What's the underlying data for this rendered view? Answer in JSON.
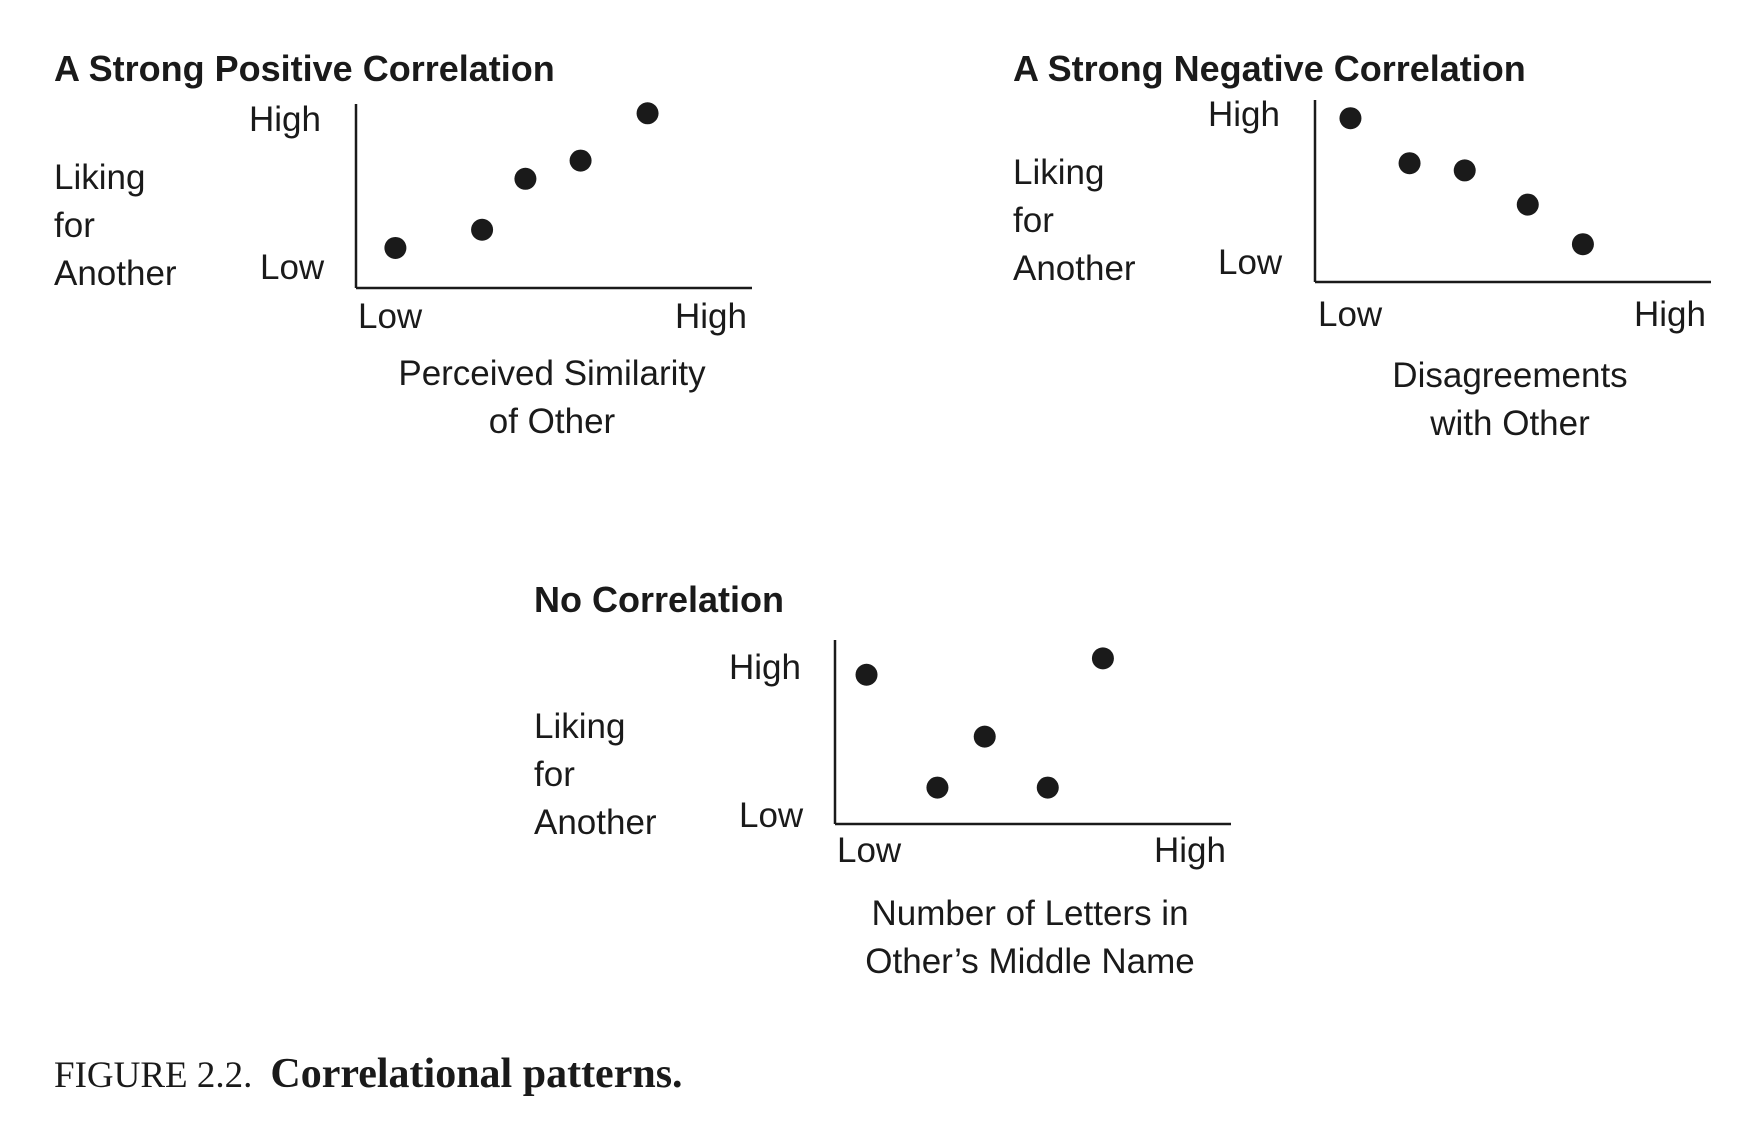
{
  "figure": {
    "number": "FIGURE 2.2.",
    "caption": "Correlational patterns."
  },
  "chart_data": [
    {
      "type": "scatter",
      "title": "A Strong Positive Correlation",
      "ylabel_lines": [
        "Liking for",
        "Another"
      ],
      "xlabel_lines": [
        "Perceived Similarity",
        "of Other"
      ],
      "x_ticks": {
        "low": "Low",
        "high": "High"
      },
      "y_ticks": {
        "low": "Low",
        "high": "High"
      },
      "xlim": [
        0,
        100
      ],
      "ylim": [
        0,
        100
      ],
      "points": [
        {
          "x": 10,
          "y": 22
        },
        {
          "x": 32,
          "y": 32
        },
        {
          "x": 43,
          "y": 60
        },
        {
          "x": 57,
          "y": 70
        },
        {
          "x": 74,
          "y": 96
        }
      ]
    },
    {
      "type": "scatter",
      "title": "A Strong Negative Correlation",
      "ylabel_lines": [
        "Liking for",
        "Another"
      ],
      "xlabel_lines": [
        "Disagreements",
        "with Other"
      ],
      "x_ticks": {
        "low": "Low",
        "high": "High"
      },
      "y_ticks": {
        "low": "Low",
        "high": "High"
      },
      "xlim": [
        0,
        100
      ],
      "ylim": [
        0,
        100
      ],
      "points": [
        {
          "x": 9,
          "y": 91
        },
        {
          "x": 24,
          "y": 66
        },
        {
          "x": 38,
          "y": 62
        },
        {
          "x": 54,
          "y": 43
        },
        {
          "x": 68,
          "y": 21
        }
      ]
    },
    {
      "type": "scatter",
      "title": "No Correlation",
      "ylabel_lines": [
        "Liking for",
        "Another"
      ],
      "xlabel_lines": [
        "Number of Letters in",
        "Other’s Middle Name"
      ],
      "x_ticks": {
        "low": "Low",
        "high": "High"
      },
      "y_ticks": {
        "low": "Low",
        "high": "High"
      },
      "xlim": [
        0,
        100
      ],
      "ylim": [
        0,
        100
      ],
      "points": [
        {
          "x": 8,
          "y": 82
        },
        {
          "x": 26,
          "y": 20
        },
        {
          "x": 38,
          "y": 48
        },
        {
          "x": 54,
          "y": 20
        },
        {
          "x": 68,
          "y": 91
        }
      ]
    }
  ]
}
